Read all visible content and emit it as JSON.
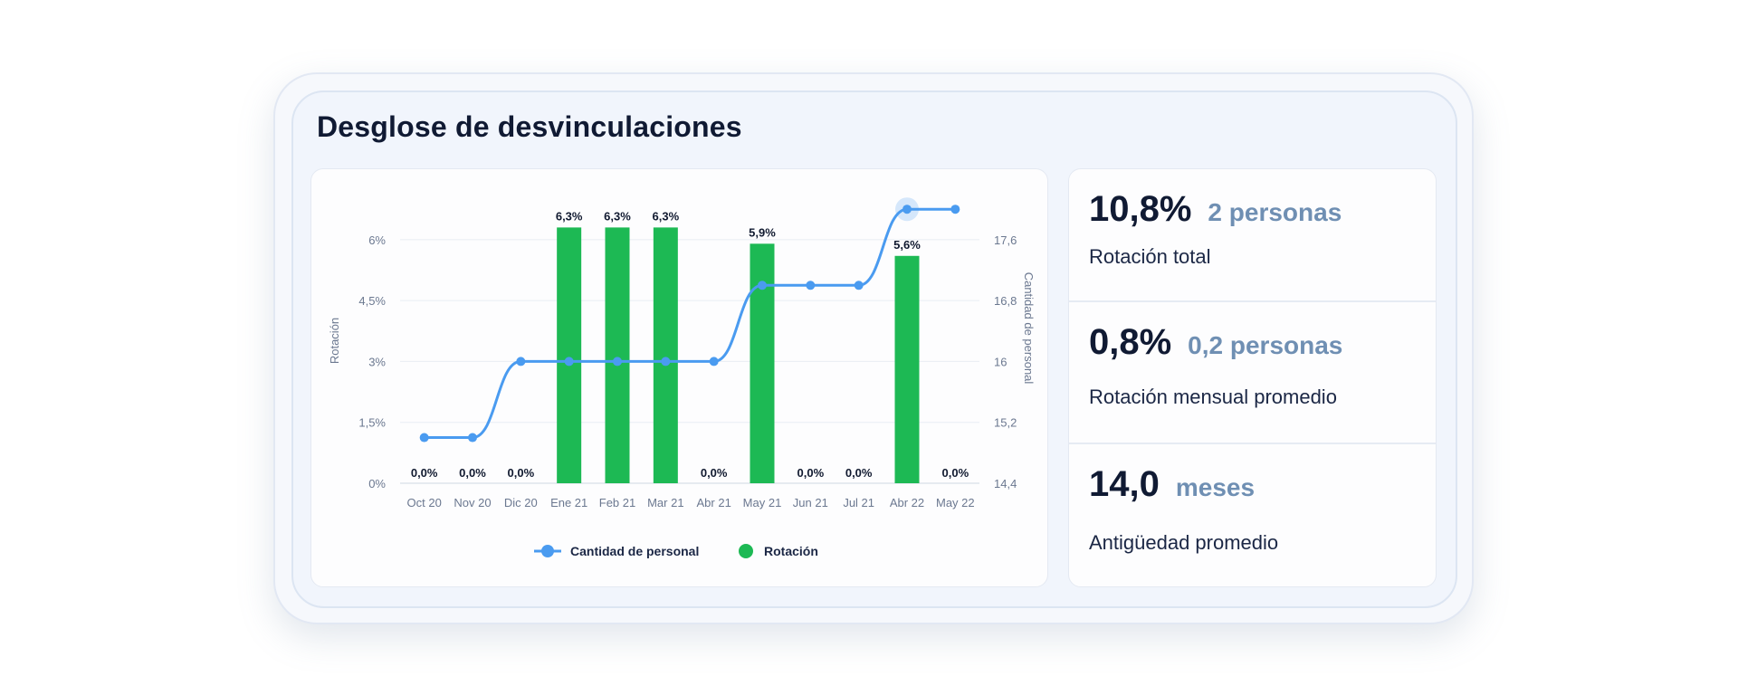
{
  "card": {
    "title": "Desglose de desvinculaciones"
  },
  "chart_data": {
    "type": "bar+line",
    "categories": [
      "Oct 20",
      "Nov 20",
      "Dic 20",
      "Ene 21",
      "Feb 21",
      "Mar 21",
      "Abr 21",
      "May 21",
      "Jun 21",
      "Jul 21",
      "Abr 22",
      "May 22"
    ],
    "series": [
      {
        "name": "Rotación",
        "type": "bar",
        "axis": "left",
        "color": "#1db954",
        "values": [
          0,
          0,
          0,
          6.3,
          6.3,
          6.3,
          0,
          5.9,
          0,
          0,
          5.6,
          0
        ],
        "labels": [
          "0,0%",
          "0,0%",
          "0,0%",
          "6,3%",
          "6,3%",
          "6,3%",
          "0,0%",
          "5,9%",
          "0,0%",
          "0,0%",
          "5,6%",
          "0,0%"
        ]
      },
      {
        "name": "Cantidad de personal",
        "type": "line",
        "axis": "right",
        "color": "#4a9bf0",
        "values": [
          15,
          15,
          16,
          16,
          16,
          16,
          16,
          17,
          17,
          17,
          18,
          18
        ]
      }
    ],
    "ylabel": "Rotación",
    "y2label": "Cantidad de personal",
    "ylim": [
      0,
      7.2
    ],
    "yticks": [
      "0%",
      "1,5%",
      "3%",
      "4,5%",
      "6%"
    ],
    "y2lim": [
      14.4,
      18.24
    ],
    "y2ticks": [
      "14,4",
      "15,2",
      "16",
      "16,8",
      "17,6"
    ],
    "grid": true,
    "legend": "bottom"
  },
  "stats": [
    {
      "value": "10,8%",
      "sub": "2 personas",
      "label": "Rotación total"
    },
    {
      "value": "0,8%",
      "sub": "0,2 personas",
      "label": "Rotación mensual promedio"
    },
    {
      "value": "14,0",
      "sub": "meses",
      "label": "Antigüedad promedio"
    }
  ]
}
